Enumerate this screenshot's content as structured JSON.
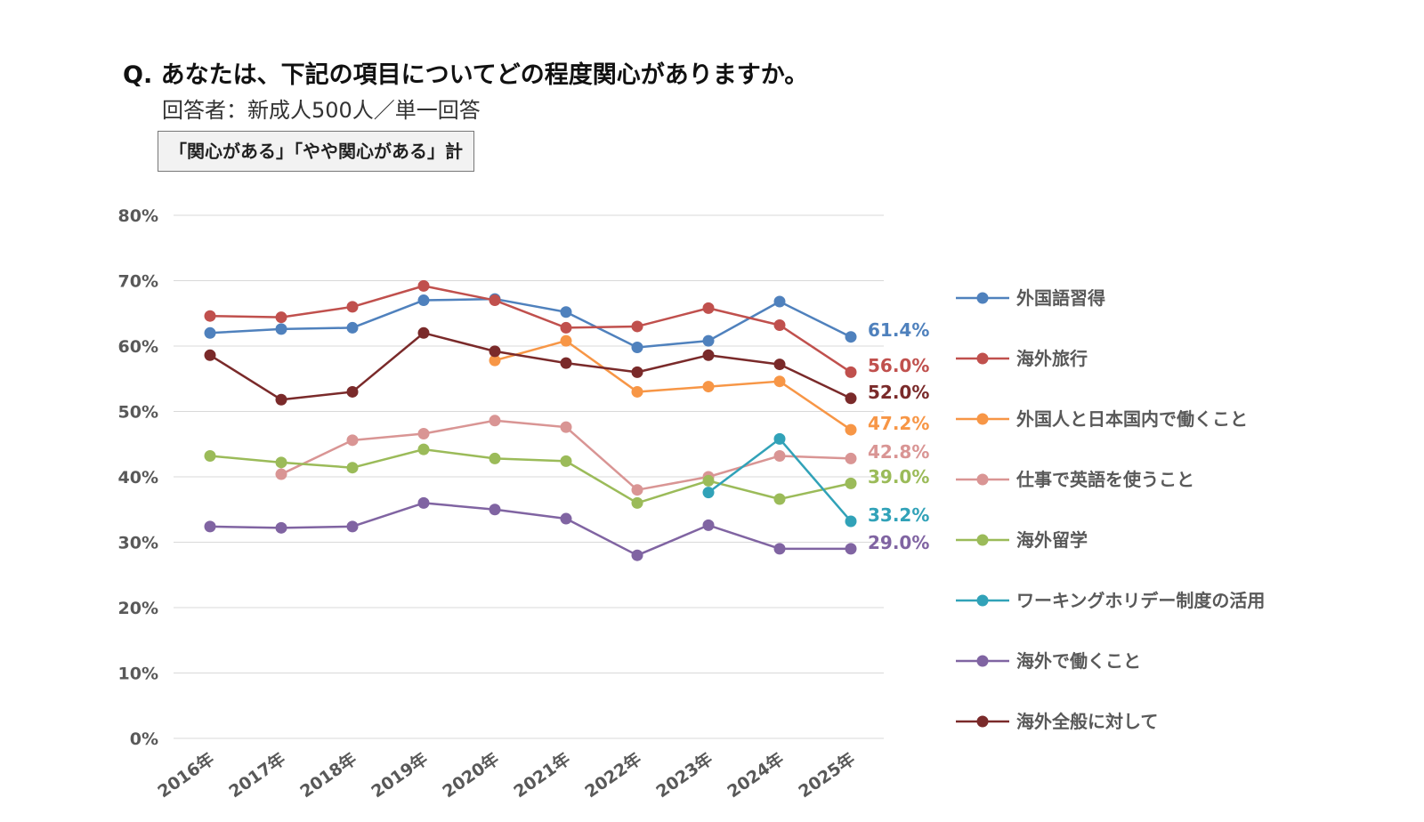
{
  "title": "Q. あなたは、下記の項目についてどの程度関心がありますか。",
  "subtitle": "回答者：新成人500人／単一回答",
  "note": "「関心がある」「やや関心がある」計",
  "chart_data": {
    "type": "line",
    "categories": [
      "2016年",
      "2017年",
      "2018年",
      "2019年",
      "2020年",
      "2021年",
      "2022年",
      "2023年",
      "2024年",
      "2025年"
    ],
    "ylim": [
      0,
      80
    ],
    "yticks": [
      0,
      10,
      20,
      30,
      40,
      50,
      60,
      70,
      80
    ],
    "ytick_labels": [
      "0%",
      "10%",
      "20%",
      "30%",
      "40%",
      "50%",
      "60%",
      "70%",
      "80%"
    ],
    "grid": true,
    "legend_position": "right",
    "series": [
      {
        "name": "外国語習得",
        "color": "#4F81BD",
        "end_label": "61.4%",
        "values": [
          62.0,
          62.6,
          62.8,
          67.0,
          67.2,
          65.2,
          59.8,
          60.8,
          66.8,
          61.4
        ]
      },
      {
        "name": "海外旅行",
        "color": "#C0504D",
        "end_label": "56.0%",
        "values": [
          64.6,
          64.4,
          66.0,
          69.2,
          67.0,
          62.8,
          63.0,
          65.8,
          63.2,
          56.0
        ]
      },
      {
        "name": "外国人と日本国内で働くこと",
        "color": "#F79646",
        "end_label": "47.2%",
        "values": [
          null,
          null,
          null,
          null,
          57.8,
          60.8,
          53.0,
          53.8,
          54.6,
          47.2
        ]
      },
      {
        "name": "仕事で英語を使うこと",
        "color": "#D99594",
        "end_label": "42.8%",
        "values": [
          null,
          40.4,
          45.6,
          46.6,
          48.6,
          47.6,
          38.0,
          40.0,
          43.2,
          42.8
        ]
      },
      {
        "name": "海外留学",
        "color": "#9BBB59",
        "end_label": "39.0%",
        "values": [
          43.2,
          42.2,
          41.4,
          44.2,
          42.8,
          42.4,
          36.0,
          39.4,
          36.6,
          39.0
        ]
      },
      {
        "name": "ワーキングホリデー制度の活用",
        "color": "#31A2B8",
        "end_label": "33.2%",
        "values": [
          null,
          null,
          null,
          null,
          null,
          null,
          null,
          37.6,
          45.8,
          33.2
        ]
      },
      {
        "name": "海外で働くこと",
        "color": "#8064A2",
        "end_label": "29.0%",
        "values": [
          32.4,
          32.2,
          32.4,
          36.0,
          35.0,
          33.6,
          28.0,
          32.6,
          29.0,
          29.0
        ]
      },
      {
        "name": "海外全般に対して",
        "color": "#7A2A2A",
        "end_label": "52.0%",
        "values": [
          58.6,
          51.8,
          53.0,
          62.0,
          59.2,
          57.4,
          56.0,
          58.6,
          57.2,
          52.0
        ]
      }
    ]
  }
}
